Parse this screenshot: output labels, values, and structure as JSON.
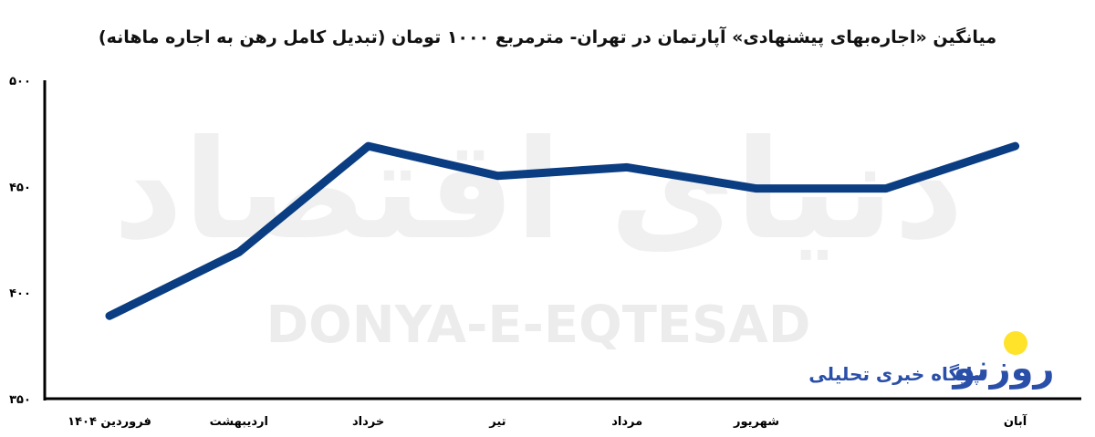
{
  "title": "میانگین «اجاره‌بهای پیشنهادی» آپارتمان در تهران- مترمربع ۱۰۰۰ تومان (تبدیل کامل رهن به اجاره ماهانه)",
  "watermark": {
    "fa": "دنیای اقتصاد",
    "en": "DONYA-E-EQTESAD"
  },
  "logo": {
    "text": "پایگاه خبری تحلیلی",
    "name": "روزنو"
  },
  "colors": {
    "line": "#0a3d82",
    "axis": "#000000",
    "logo_sun": "#ffe22a",
    "logo_blue": "#2a4fa8"
  },
  "chart_data": {
    "type": "line",
    "title": "میانگین «اجاره‌بهای پیشنهادی» آپارتمان در تهران- مترمربع ۱۰۰۰ تومان (تبدیل کامل رهن به اجاره ماهانه)",
    "categories": [
      "فروردین ۱۴۰۴",
      "اردیبهشت",
      "خرداد",
      "تیر",
      "مرداد",
      "شهریور",
      "",
      "آبان"
    ],
    "values": [
      389,
      419,
      469,
      455,
      459,
      449,
      449,
      469
    ],
    "ylim": [
      350,
      500
    ],
    "yticks": [
      350,
      400,
      450,
      500
    ],
    "ytick_labels": [
      "۳۵۰",
      "۴۰۰",
      "۴۵۰",
      "۵۰۰"
    ],
    "grid": false
  }
}
